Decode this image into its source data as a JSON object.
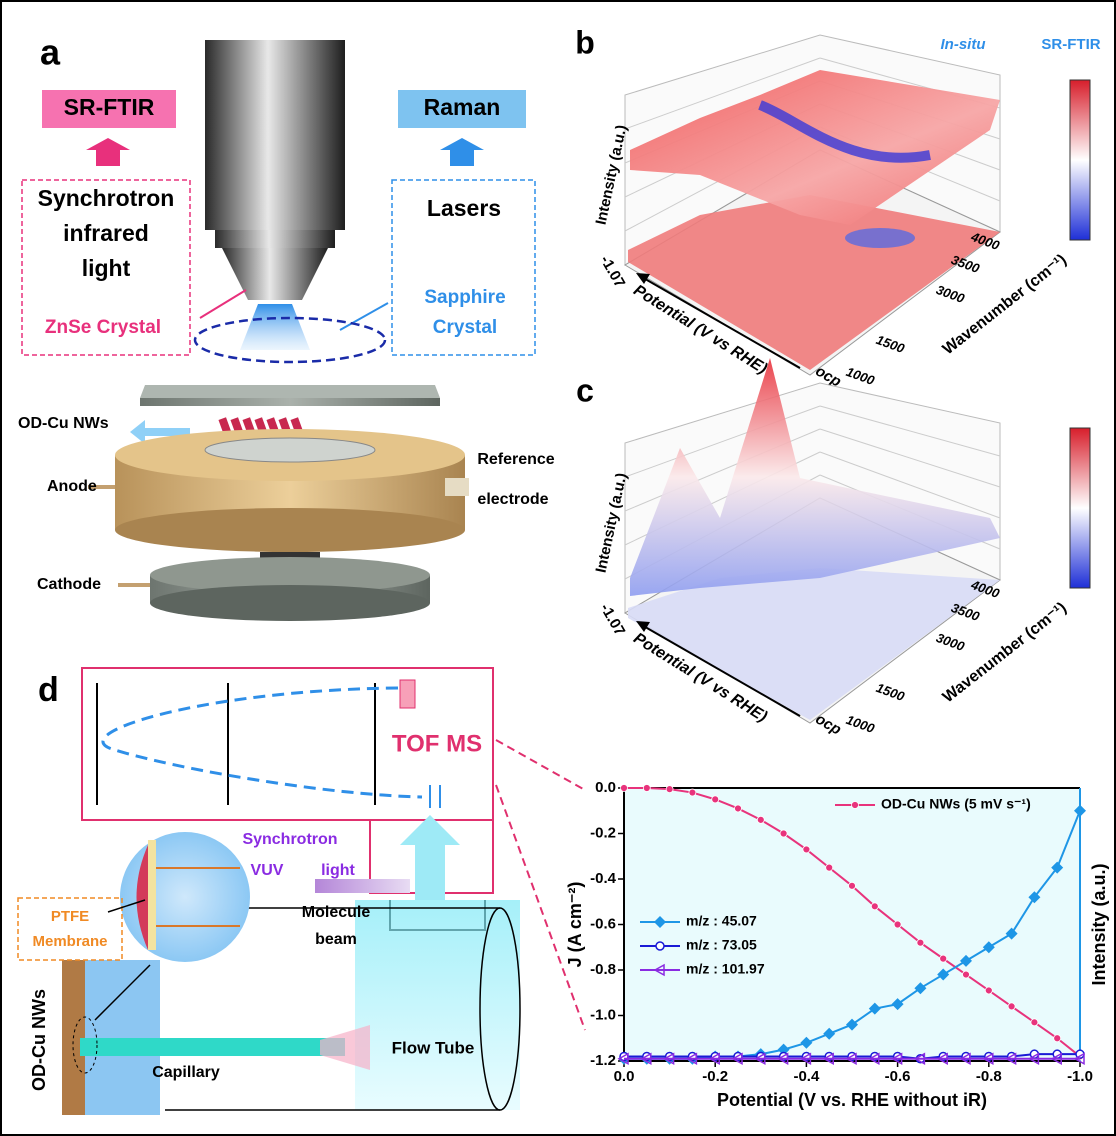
{
  "panel_a": {
    "label": "a",
    "left_title": "SR-FTIR",
    "right_title": "Raman",
    "left_box": [
      "Synchrotron",
      "infrared",
      "light"
    ],
    "left_crystal": "ZnSe Crystal",
    "right_box": "Lasers",
    "right_crystal": [
      "Sapphire",
      "Crystal"
    ],
    "nanowires": "OD-Cu NWs",
    "reference": [
      "Reference",
      "electrode"
    ],
    "anode": "Anode",
    "cathode": "Cathode"
  },
  "panel_b": {
    "label": "b",
    "title_italic": "In-situ",
    "title_rest": "SR-FTIR",
    "y_label": "Intensity (a.u.)",
    "potential_label": "Potential (V vs RHE)",
    "potential_ticks": [
      "-1.07",
      "ocp"
    ],
    "wavenumber_label": "Wavenumber (cm⁻¹)",
    "wavenumber_ticks": [
      "1000",
      "1500",
      "3000",
      "3500",
      "4000"
    ]
  },
  "panel_c": {
    "label": "c",
    "y_label": "Intensity (a.u.)",
    "potential_label": "Potential (V vs RHE)",
    "potential_ticks": [
      "-1.07",
      "ocp"
    ],
    "wavenumber_label": "Wavenumber (cm⁻¹)",
    "wavenumber_ticks": [
      "1000",
      "1500",
      "3000",
      "3500",
      "4000"
    ]
  },
  "panel_d": {
    "label": "d",
    "tof": "TOF MS",
    "vuv": [
      "Synchrotron",
      "VUV",
      "light"
    ],
    "beam": [
      "Molecule",
      "beam"
    ],
    "ptfe": [
      "PTFE",
      "Membrane"
    ],
    "nws": "OD-Cu NWs",
    "capillary": "Capillary",
    "flow_tube": "Flow Tube"
  },
  "chart_data": {
    "type": "line",
    "x_label": "Potential (V vs. RHE without iR)",
    "y_label": "J (A cm⁻²)",
    "y2_label": "Intensity (a.u.)",
    "x": [
      0,
      -0.05,
      -0.1,
      -0.15,
      -0.2,
      -0.25,
      -0.3,
      -0.35,
      -0.4,
      -0.45,
      -0.5,
      -0.55,
      -0.6,
      -0.65,
      -0.7,
      -0.75,
      -0.8,
      -0.85,
      -0.9,
      -0.95,
      -1
    ],
    "xlim": [
      0,
      -1
    ],
    "xticks": [
      {
        "value": 0,
        "label": "0.0"
      },
      -0.2,
      -0.4,
      -0.6,
      -0.8,
      {
        "value": -1,
        "label": "-1.0"
      }
    ],
    "ylim": [
      -1.2,
      0
    ],
    "yticks": [
      {
        "value": 0,
        "label": "0.0"
      },
      -0.2,
      -0.4,
      -0.6,
      -0.8,
      {
        "value": -1,
        "label": "-1.0"
      },
      -1.2
    ],
    "y2lim": [
      0,
      1.2
    ],
    "series": [
      {
        "name": "OD-Cu NWs (5 mV s⁻¹)",
        "color": "#e8337c",
        "marker": "circle",
        "values": [
          0,
          0,
          -0.005,
          -0.02,
          -0.05,
          -0.09,
          -0.14,
          -0.2,
          -0.27,
          -0.35,
          -0.43,
          -0.52,
          -0.6,
          -0.68,
          -0.75,
          -0.82,
          -0.89,
          -0.96,
          -1.03,
          -1.1,
          -1.18
        ]
      },
      {
        "name": "m/z : 45.07",
        "color": "#1e96e6",
        "marker": "diamond",
        "axis": "y2",
        "values": [
          0.01,
          0.01,
          0.01,
          0.01,
          0.02,
          0.02,
          0.03,
          0.05,
          0.08,
          0.12,
          0.16,
          0.23,
          0.25,
          0.32,
          0.38,
          0.44,
          0.5,
          0.56,
          0.72,
          0.85,
          1.1
        ]
      },
      {
        "name": "m/z : 73.05",
        "color": "#1a1ad6",
        "marker": "open-circle",
        "axis": "y2",
        "values": [
          0.02,
          0.02,
          0.02,
          0.02,
          0.02,
          0.02,
          0.02,
          0.02,
          0.02,
          0.02,
          0.02,
          0.02,
          0.02,
          0.01,
          0.02,
          0.02,
          0.02,
          0.02,
          0.03,
          0.03,
          0.03
        ]
      },
      {
        "name": "m/z : 101.97",
        "color": "#8a2be2",
        "marker": "open-triangle",
        "axis": "y2",
        "values": [
          0.01,
          0.01,
          0.01,
          0.01,
          0.01,
          0.01,
          0.01,
          0.01,
          0.01,
          0.01,
          0.01,
          0.01,
          0.01,
          0.01,
          0.01,
          0.01,
          0.01,
          0.01,
          0.01,
          0.01,
          0.01
        ]
      }
    ]
  }
}
